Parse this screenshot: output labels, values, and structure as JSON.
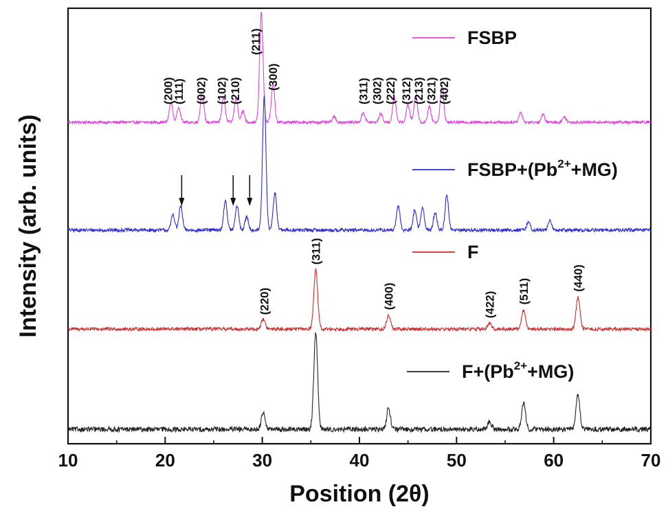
{
  "chart_data": {
    "type": "line",
    "xlabel": "Position (2θ)",
    "ylabel": "Intensity (arb. units)",
    "xlim": [
      10,
      70
    ],
    "x_ticks": [
      "10",
      "20",
      "30",
      "40",
      "50",
      "60",
      "70"
    ],
    "y_ticks_labeled": false,
    "grid": false,
    "legend": "inline beside each trace",
    "series": [
      {
        "name": "FSBP",
        "legend_main": "FSBP",
        "legend_sup": "",
        "legend_tail": "",
        "color": "#e040e0",
        "baseline": 0.2,
        "noise": 0.006,
        "peaks": [
          {
            "x": 20.6,
            "h": 0.18,
            "w": 0.25
          },
          {
            "x": 21.4,
            "h": 0.14,
            "w": 0.25
          },
          {
            "x": 23.8,
            "h": 0.26,
            "w": 0.25
          },
          {
            "x": 26.0,
            "h": 0.22,
            "w": 0.25
          },
          {
            "x": 27.3,
            "h": 0.22,
            "w": 0.25
          },
          {
            "x": 28.0,
            "h": 0.1,
            "w": 0.25
          },
          {
            "x": 29.9,
            "h": 1.0,
            "w": 0.25
          },
          {
            "x": 31.1,
            "h": 0.34,
            "w": 0.25
          },
          {
            "x": 37.4,
            "h": 0.05,
            "w": 0.25
          },
          {
            "x": 40.4,
            "h": 0.09,
            "w": 0.25
          },
          {
            "x": 42.2,
            "h": 0.08,
            "w": 0.25
          },
          {
            "x": 43.6,
            "h": 0.22,
            "w": 0.25
          },
          {
            "x": 45.0,
            "h": 0.16,
            "w": 0.25
          },
          {
            "x": 45.8,
            "h": 0.25,
            "w": 0.25
          },
          {
            "x": 47.2,
            "h": 0.14,
            "w": 0.25
          },
          {
            "x": 48.5,
            "h": 0.33,
            "w": 0.25
          },
          {
            "x": 56.6,
            "h": 0.09,
            "w": 0.25
          },
          {
            "x": 58.9,
            "h": 0.07,
            "w": 0.25
          },
          {
            "x": 61.1,
            "h": 0.05,
            "w": 0.25
          }
        ],
        "peak_labels": [
          {
            "x": 20.3,
            "text": "(200)"
          },
          {
            "x": 21.4,
            "text": "(111)"
          },
          {
            "x": 23.7,
            "text": "(002)"
          },
          {
            "x": 25.8,
            "text": "(102)"
          },
          {
            "x": 27.2,
            "text": "(210)"
          },
          {
            "x": 29.3,
            "text": "(211)"
          },
          {
            "x": 31.1,
            "text": "(300)"
          },
          {
            "x": 40.4,
            "text": "(311)"
          },
          {
            "x": 41.8,
            "text": "(302)"
          },
          {
            "x": 43.2,
            "text": "(222)"
          },
          {
            "x": 44.8,
            "text": "(312)"
          },
          {
            "x": 46.1,
            "text": "(213)"
          },
          {
            "x": 47.4,
            "text": "(321)"
          },
          {
            "x": 48.7,
            "text": "(402)"
          }
        ]
      },
      {
        "name": "FSBP+(Pb2++MG)",
        "legend_main": "FSBP+(Pb",
        "legend_sup": "2+",
        "legend_tail": "+MG)",
        "color": "#2a2ad8",
        "baseline": 0.19,
        "noise": 0.006,
        "peaks": [
          {
            "x": 20.8,
            "h": 0.12,
            "w": 0.25
          },
          {
            "x": 21.6,
            "h": 0.18,
            "w": 0.25
          },
          {
            "x": 26.2,
            "h": 0.22,
            "w": 0.25
          },
          {
            "x": 27.4,
            "h": 0.18,
            "w": 0.25
          },
          {
            "x": 28.4,
            "h": 0.1,
            "w": 0.25
          },
          {
            "x": 30.2,
            "h": 1.0,
            "w": 0.25
          },
          {
            "x": 31.3,
            "h": 0.28,
            "w": 0.25
          },
          {
            "x": 44.0,
            "h": 0.18,
            "w": 0.25
          },
          {
            "x": 45.7,
            "h": 0.15,
            "w": 0.25
          },
          {
            "x": 46.5,
            "h": 0.17,
            "w": 0.25
          },
          {
            "x": 47.8,
            "h": 0.13,
            "w": 0.25
          },
          {
            "x": 49.0,
            "h": 0.26,
            "w": 0.25
          },
          {
            "x": 57.4,
            "h": 0.06,
            "w": 0.25
          },
          {
            "x": 59.6,
            "h": 0.07,
            "w": 0.25
          }
        ],
        "arrows_x": [
          21.7,
          27.0,
          28.7
        ],
        "peak_labels": []
      },
      {
        "name": "F",
        "legend_main": "F",
        "legend_sup": "",
        "legend_tail": "",
        "color": "#d02a2a",
        "baseline": 0.21,
        "noise": 0.01,
        "peaks": [
          {
            "x": 30.1,
            "h": 0.13,
            "w": 0.28
          },
          {
            "x": 35.5,
            "h": 0.78,
            "w": 0.28
          },
          {
            "x": 43.0,
            "h": 0.18,
            "w": 0.28
          },
          {
            "x": 53.4,
            "h": 0.07,
            "w": 0.28
          },
          {
            "x": 56.9,
            "h": 0.25,
            "w": 0.28
          },
          {
            "x": 62.5,
            "h": 0.42,
            "w": 0.28
          }
        ],
        "peak_labels": [
          {
            "x": 30.2,
            "text": "(220)"
          },
          {
            "x": 35.5,
            "text": "(311)"
          },
          {
            "x": 43.0,
            "text": "(400)"
          },
          {
            "x": 53.4,
            "text": "(422)"
          },
          {
            "x": 56.9,
            "text": "(511)"
          },
          {
            "x": 62.5,
            "text": "(440)"
          }
        ]
      },
      {
        "name": "F+(Pb2++MG)",
        "legend_main": "F+(Pb",
        "legend_sup": "2+",
        "legend_tail": "+MG)",
        "color": "#222222",
        "baseline": 0.17,
        "noise": 0.012,
        "peaks": [
          {
            "x": 30.1,
            "h": 0.18,
            "w": 0.28
          },
          {
            "x": 35.5,
            "h": 1.0,
            "w": 0.28
          },
          {
            "x": 43.0,
            "h": 0.22,
            "w": 0.28
          },
          {
            "x": 53.4,
            "h": 0.08,
            "w": 0.28
          },
          {
            "x": 56.9,
            "h": 0.28,
            "w": 0.28
          },
          {
            "x": 62.5,
            "h": 0.36,
            "w": 0.28
          }
        ],
        "peak_labels": []
      }
    ]
  }
}
